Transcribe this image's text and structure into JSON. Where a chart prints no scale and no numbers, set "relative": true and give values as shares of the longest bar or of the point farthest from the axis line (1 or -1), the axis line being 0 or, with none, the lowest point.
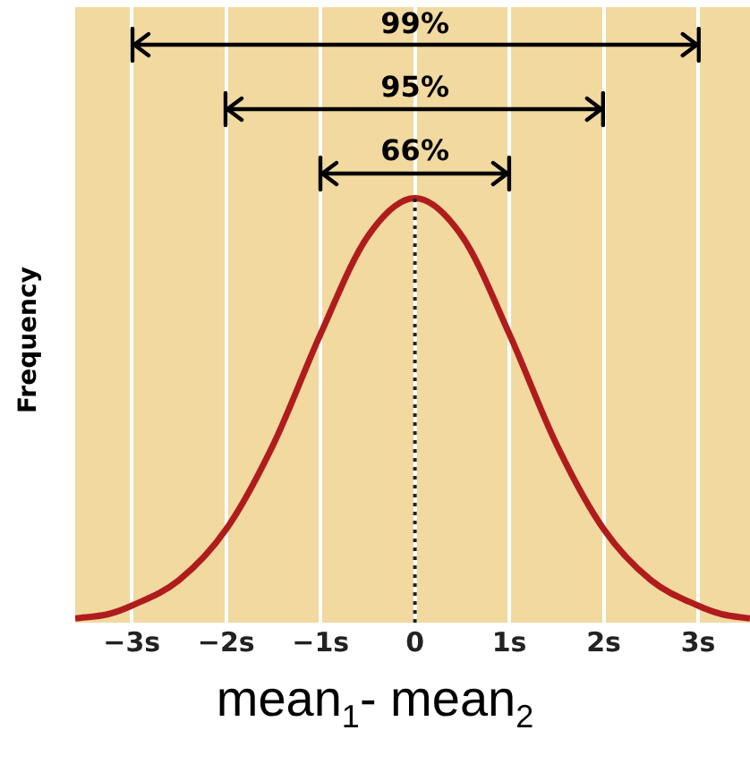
{
  "chart_data": {
    "type": "line",
    "relative": true,
    "ylabel": "Frequency",
    "xlabel": "mean$_{1}$- mean$_{2}$",
    "x": [
      -3.6,
      -3.25,
      -3,
      -2.5,
      -2,
      -1.5,
      -1,
      -0.5,
      0,
      0.5,
      1,
      1.5,
      2,
      2.5,
      3,
      3.25,
      3.55
    ],
    "series": [
      {
        "color": "#b01c1c",
        "values": [
          0.01,
          0.02,
          0.04,
          0.1,
          0.22,
          0.42,
          0.68,
          0.91,
          1,
          0.91,
          0.68,
          0.42,
          0.22,
          0.1,
          0.04,
          0.02,
          0.01
        ]
      }
    ],
    "xlim": [
      -3.6,
      3.55
    ],
    "xticks": [
      {
        "value": -3,
        "label": "−3s"
      },
      {
        "value": -2,
        "label": "−2s"
      },
      {
        "value": -1,
        "label": "−1s"
      },
      0,
      {
        "value": 1,
        "label": "1s"
      },
      {
        "value": 2,
        "label": "2s"
      },
      {
        "value": 3,
        "label": "3s"
      }
    ],
    "grid": "x",
    "marker": "none",
    "line_style": "solid",
    "legend": false,
    "ref_lines": [
      {
        "axis": "x",
        "value": 0,
        "line_style": "dotted",
        "color": "#222222"
      }
    ],
    "annotations": [
      "99%",
      "95%",
      "66%"
    ]
  }
}
